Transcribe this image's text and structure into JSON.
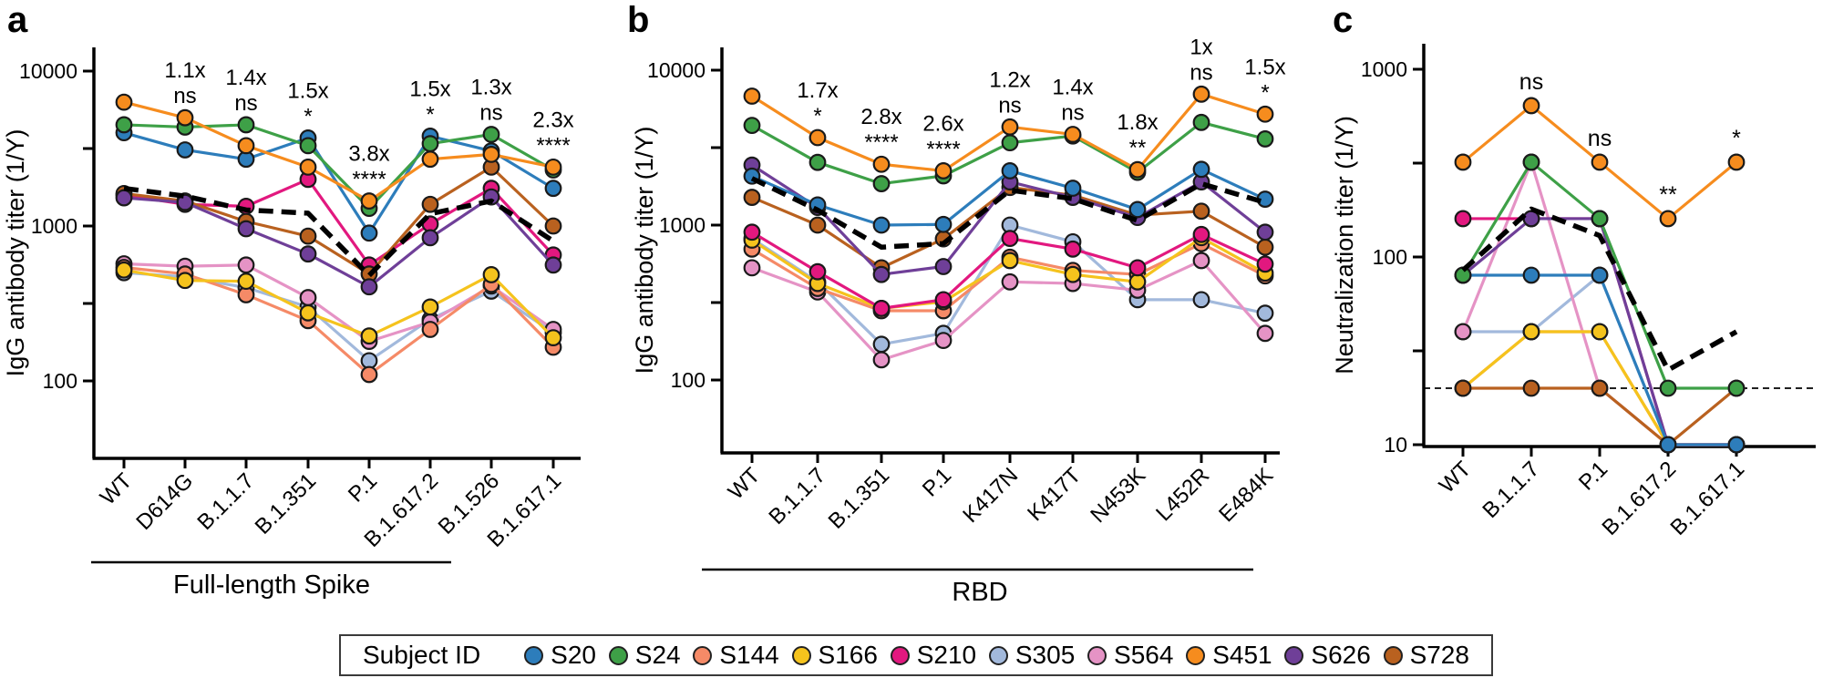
{
  "legend": {
    "title": "Subject ID",
    "entries": [
      {
        "id": "S20",
        "color": "#2d7dbb"
      },
      {
        "id": "S24",
        "color": "#3ea047"
      },
      {
        "id": "S144",
        "color": "#f58a67"
      },
      {
        "id": "S166",
        "color": "#f5c31d"
      },
      {
        "id": "S210",
        "color": "#e2187f"
      },
      {
        "id": "S305",
        "color": "#a2b9dc"
      },
      {
        "id": "S564",
        "color": "#e593c5"
      },
      {
        "id": "S451",
        "color": "#f68c1e"
      },
      {
        "id": "S626",
        "color": "#6f3f98"
      },
      {
        "id": "S728",
        "color": "#b9611f"
      }
    ]
  },
  "chart_data": [
    {
      "letter": "a",
      "type": "line",
      "yscale": "log",
      "ylabel": "IgG antibody titer (1/Y)",
      "xlabel_group": "Full-length Spike",
      "yticks": [
        10000,
        1000,
        100
      ],
      "ylim": [
        33,
        12000
      ],
      "categories": [
        "WT",
        "D614G",
        "B.1.1.7",
        "B.1.351",
        "P.1",
        "B.1.617.2",
        "B.1.526",
        "B.1.617.1"
      ],
      "annotations": [
        {
          "category": "D614G",
          "fold": "1.1x",
          "sig": "ns"
        },
        {
          "category": "B.1.1.7",
          "fold": "1.4x",
          "sig": "ns"
        },
        {
          "category": "B.1.351",
          "fold": "1.5x",
          "sig": "*"
        },
        {
          "category": "P.1",
          "fold": "3.8x",
          "sig": "****"
        },
        {
          "category": "B.1.617.2",
          "fold": "1.5x",
          "sig": "*"
        },
        {
          "category": "B.1.526",
          "fold": "1.3x",
          "sig": "ns"
        },
        {
          "category": "B.1.617.1",
          "fold": "2.3x",
          "sig": "****"
        }
      ],
      "series": [
        {
          "id": "S305",
          "color": "#a2b9dc",
          "values": [
            500,
            470,
            400,
            300,
            135,
            250,
            380,
            205
          ]
        },
        {
          "id": "S564",
          "color": "#e593c5",
          "values": [
            570,
            550,
            560,
            345,
            180,
            240,
            410,
            215
          ]
        },
        {
          "id": "S144",
          "color": "#f58a67",
          "values": [
            540,
            490,
            360,
            245,
            110,
            215,
            420,
            165
          ]
        },
        {
          "id": "S166",
          "color": "#f5c31d",
          "values": [
            520,
            445,
            440,
            275,
            195,
            300,
            485,
            190
          ]
        },
        {
          "id": "S210",
          "color": "#e2187f",
          "values": [
            1580,
            1380,
            1340,
            2000,
            560,
            1030,
            1750,
            650
          ]
        },
        {
          "id": "S728",
          "color": "#b9611f",
          "values": [
            1620,
            1450,
            1070,
            860,
            490,
            1380,
            2400,
            1000
          ]
        },
        {
          "id": "S626",
          "color": "#6f3f98",
          "values": [
            1520,
            1420,
            960,
            660,
            405,
            840,
            1540,
            560
          ]
        },
        {
          "id": "S20",
          "color": "#2d7dbb",
          "values": [
            4000,
            3100,
            2700,
            3700,
            900,
            3800,
            3050,
            1750
          ]
        },
        {
          "id": "S24",
          "color": "#3ea047",
          "values": [
            4500,
            4350,
            4500,
            3300,
            1300,
            3400,
            3900,
            2300
          ]
        },
        {
          "id": "S451",
          "color": "#f68c1e",
          "values": [
            6300,
            5000,
            3300,
            2400,
            1450,
            2700,
            2900,
            2400
          ]
        }
      ],
      "geometric_mean": {
        "style": "dashed-black",
        "values": [
          1750,
          1560,
          1270,
          1210,
          480,
          1200,
          1450,
          800
        ]
      }
    },
    {
      "letter": "b",
      "type": "line",
      "yscale": "log",
      "ylabel": "IgG antibody titer (1/Y)",
      "xlabel_group": "RBD",
      "yticks": [
        10000,
        1000,
        100
      ],
      "ylim": [
        33,
        12000
      ],
      "categories": [
        "WT",
        "B.1.1.7",
        "B.1.351",
        "P.1",
        "K417N",
        "K417T",
        "N453K",
        "L452R",
        "E484K"
      ],
      "annotations": [
        {
          "category": "B.1.1.7",
          "fold": "1.7x",
          "sig": "*"
        },
        {
          "category": "B.1.351",
          "fold": "2.8x",
          "sig": "****"
        },
        {
          "category": "P.1",
          "fold": "2.6x",
          "sig": "****"
        },
        {
          "category": "K417N",
          "fold": "1.2x",
          "sig": "ns"
        },
        {
          "category": "K417T",
          "fold": "1.4x",
          "sig": "ns"
        },
        {
          "category": "N453K",
          "fold": "1.8x",
          "sig": "**"
        },
        {
          "category": "L452R",
          "fold": "1x",
          "sig": "ns"
        },
        {
          "category": "E484K",
          "fold": "1.5x",
          "sig": "*"
        }
      ],
      "series": [
        {
          "id": "S305",
          "color": "#a2b9dc",
          "values": [
            820,
            430,
            170,
            200,
            1000,
            780,
            330,
            330,
            270
          ]
        },
        {
          "id": "S564",
          "color": "#e593c5",
          "values": [
            530,
            370,
            135,
            180,
            430,
            420,
            380,
            590,
            200
          ]
        },
        {
          "id": "S144",
          "color": "#f58a67",
          "values": [
            700,
            390,
            280,
            280,
            620,
            510,
            480,
            760,
            470
          ]
        },
        {
          "id": "S166",
          "color": "#f5c31d",
          "values": [
            800,
            420,
            290,
            320,
            590,
            480,
            430,
            830,
            490
          ]
        },
        {
          "id": "S210",
          "color": "#e2187f",
          "values": [
            900,
            500,
            290,
            330,
            820,
            700,
            530,
            870,
            560
          ]
        },
        {
          "id": "S728",
          "color": "#b9611f",
          "values": [
            1510,
            1000,
            530,
            815,
            1750,
            1560,
            1160,
            1230,
            720
          ]
        },
        {
          "id": "S626",
          "color": "#6f3f98",
          "values": [
            2440,
            1300,
            480,
            540,
            1900,
            1510,
            1120,
            1900,
            900
          ]
        },
        {
          "id": "S20",
          "color": "#2d7dbb",
          "values": [
            2070,
            1350,
            1000,
            1010,
            2240,
            1730,
            1260,
            2290,
            1470
          ]
        },
        {
          "id": "S24",
          "color": "#3ea047",
          "values": [
            4400,
            2540,
            1850,
            2080,
            3400,
            3760,
            2190,
            4600,
            3600
          ]
        },
        {
          "id": "S451",
          "color": "#f68c1e",
          "values": [
            6800,
            3670,
            2470,
            2240,
            4300,
            3850,
            2280,
            7000,
            5200
          ]
        }
      ],
      "geometric_mean": {
        "style": "dashed-black",
        "values": [
          2000,
          1250,
          720,
          760,
          1680,
          1480,
          1070,
          1850,
          1400
        ]
      }
    },
    {
      "letter": "c",
      "type": "line",
      "yscale": "log",
      "ylabel": "Neutralization titer (1/Y)",
      "xlabel_group": "",
      "yticks": [
        1000,
        100,
        10
      ],
      "ylim": [
        10,
        1000
      ],
      "threshold_line": 20,
      "categories": [
        "WT",
        "B.1.1.7",
        "P.1",
        "B.1.617.2",
        "B.1.617.1"
      ],
      "annotations": [
        {
          "category": "B.1.1.7",
          "sig": "ns"
        },
        {
          "category": "P.1",
          "sig": "ns"
        },
        {
          "category": "B.1.617.2",
          "sig": "**"
        },
        {
          "category": "B.1.617.1",
          "sig": "*"
        }
      ],
      "series": [
        {
          "id": "S305",
          "color": "#a2b9dc",
          "values": [
            40,
            40,
            80,
            10,
            10
          ]
        },
        {
          "id": "S564",
          "color": "#e593c5",
          "values": [
            40,
            320,
            20,
            10,
            10
          ]
        },
        {
          "id": "S144",
          "color": "#f58a67",
          "values": [
            20,
            40,
            40,
            10,
            10
          ]
        },
        {
          "id": "S166",
          "color": "#f5c31d",
          "values": [
            20,
            40,
            40,
            10,
            10
          ]
        },
        {
          "id": "S210",
          "color": "#e2187f",
          "values": [
            160,
            160,
            160,
            10,
            10
          ]
        },
        {
          "id": "S728",
          "color": "#b9611f",
          "values": [
            20,
            20,
            20,
            10,
            20
          ]
        },
        {
          "id": "S626",
          "color": "#6f3f98",
          "values": [
            80,
            160,
            160,
            10,
            10
          ]
        },
        {
          "id": "S20",
          "color": "#2d7dbb",
          "values": [
            80,
            80,
            80,
            10,
            10
          ]
        },
        {
          "id": "S24",
          "color": "#3ea047",
          "values": [
            80,
            320,
            160,
            20,
            20
          ]
        },
        {
          "id": "S451",
          "color": "#f68c1e",
          "values": [
            320,
            640,
            320,
            160,
            320
          ]
        }
      ],
      "geometric_mean": {
        "style": "dashed-black",
        "values": [
          85,
          180,
          130,
          25,
          40
        ]
      }
    }
  ]
}
